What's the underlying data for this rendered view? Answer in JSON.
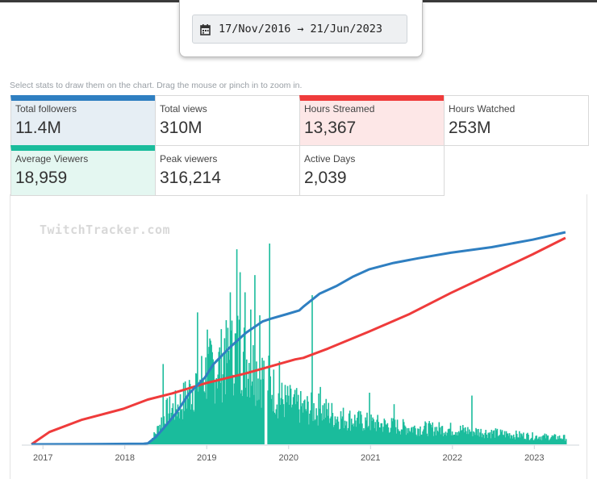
{
  "date_range": {
    "start": "17/Nov/2016",
    "arrow": "→",
    "end": "21/Jun/2023",
    "icon": "calendar-icon"
  },
  "hint": "Select stats to draw them on the chart. Drag the mouse or pinch in to zoom in.",
  "stats": [
    {
      "label": "Total followers",
      "value": "11.4M",
      "active": true,
      "color": "#2f7fc1"
    },
    {
      "label": "Total views",
      "value": "310M",
      "active": false
    },
    {
      "label": "Hours Streamed",
      "value": "13,367",
      "active": true,
      "color": "#ef3b3b"
    },
    {
      "label": "Hours Watched",
      "value": "253M",
      "active": false
    },
    {
      "label": "Average Viewers",
      "value": "18,959",
      "active": true,
      "color": "#1abc9c"
    },
    {
      "label": "Peak viewers",
      "value": "316,214",
      "active": false
    },
    {
      "label": "Active Days",
      "value": "2,039",
      "active": false
    }
  ],
  "watermark": "TwitchTracker.com",
  "chart_data": {
    "type": "line+bar",
    "x_range": [
      2016.88,
      2023.47
    ],
    "x_ticks": [
      "2017",
      "2018",
      "2019",
      "2020",
      "2021",
      "2022",
      "2023"
    ],
    "grid": false,
    "legend": "none",
    "series": [
      {
        "name": "Total followers",
        "kind": "line",
        "color": "#2f7fc1",
        "unit": "millions",
        "points": [
          [
            2016.88,
            0.0
          ],
          [
            2017.5,
            0.01
          ],
          [
            2018.25,
            0.03
          ],
          [
            2018.3,
            0.05
          ],
          [
            2018.4,
            0.4
          ],
          [
            2018.5,
            0.9
          ],
          [
            2018.65,
            1.7
          ],
          [
            2018.8,
            2.7
          ],
          [
            2019.0,
            3.6
          ],
          [
            2019.1,
            4.3
          ],
          [
            2019.3,
            5.2
          ],
          [
            2019.5,
            6.0
          ],
          [
            2019.7,
            6.6
          ],
          [
            2019.8,
            6.75
          ],
          [
            2020.0,
            7.0
          ],
          [
            2020.15,
            7.2
          ],
          [
            2020.2,
            7.4
          ],
          [
            2020.4,
            8.1
          ],
          [
            2020.6,
            8.5
          ],
          [
            2020.8,
            9.0
          ],
          [
            2021.0,
            9.4
          ],
          [
            2021.3,
            9.75
          ],
          [
            2021.6,
            10.0
          ],
          [
            2022.0,
            10.3
          ],
          [
            2022.5,
            10.6
          ],
          [
            2023.0,
            11.0
          ],
          [
            2023.4,
            11.4
          ]
        ]
      },
      {
        "name": "Hours Streamed",
        "kind": "line",
        "color": "#ef3b3b",
        "unit": "thousands",
        "points": [
          [
            2016.88,
            0.0
          ],
          [
            2017.1,
            0.8
          ],
          [
            2017.5,
            1.6
          ],
          [
            2018.0,
            2.3
          ],
          [
            2018.3,
            2.9
          ],
          [
            2018.6,
            3.3
          ],
          [
            2019.0,
            3.95
          ],
          [
            2019.5,
            4.6
          ],
          [
            2019.8,
            5.05
          ],
          [
            2020.1,
            5.5
          ],
          [
            2020.2,
            5.6
          ],
          [
            2020.5,
            6.2
          ],
          [
            2021.0,
            7.3
          ],
          [
            2021.5,
            8.45
          ],
          [
            2022.0,
            9.8
          ],
          [
            2022.5,
            11.05
          ],
          [
            2023.0,
            12.3
          ],
          [
            2023.4,
            13.367
          ]
        ]
      },
      {
        "name": "Average Viewers",
        "kind": "bar",
        "color": "#1abc9c",
        "unit": "thousands",
        "start": 2018.3,
        "end": 2023.4,
        "envelope": [
          [
            2018.3,
            0.1
          ],
          [
            2018.4,
            5
          ],
          [
            2018.5,
            12
          ],
          [
            2018.7,
            16
          ],
          [
            2018.9,
            25
          ],
          [
            2019.0,
            28
          ],
          [
            2019.2,
            32
          ],
          [
            2019.4,
            38
          ],
          [
            2019.6,
            30
          ],
          [
            2019.75,
            26
          ],
          [
            2019.9,
            18
          ],
          [
            2020.2,
            14
          ],
          [
            2020.4,
            14
          ],
          [
            2020.6,
            11
          ],
          [
            2021.0,
            8.5
          ],
          [
            2021.5,
            6.5
          ],
          [
            2022.0,
            6
          ],
          [
            2022.5,
            4.5
          ],
          [
            2023.0,
            3.2
          ],
          [
            2023.4,
            2.6
          ]
        ],
        "spikes": [
          [
            2018.48,
            28
          ],
          [
            2018.9,
            46
          ],
          [
            2019.02,
            40
          ],
          [
            2019.23,
            37
          ],
          [
            2019.3,
            53
          ],
          [
            2019.38,
            68
          ],
          [
            2019.42,
            60
          ],
          [
            2019.48,
            53
          ],
          [
            2019.55,
            47
          ],
          [
            2019.6,
            59
          ],
          [
            2019.66,
            45
          ],
          [
            2019.78,
            70
          ],
          [
            2019.9,
            29
          ],
          [
            2020.3,
            52
          ],
          [
            2020.4,
            20
          ],
          [
            2021.0,
            18
          ],
          [
            2021.3,
            14
          ],
          [
            2022.25,
            17
          ]
        ],
        "gaps": [
          2019.71,
          2019.75
        ]
      }
    ]
  }
}
